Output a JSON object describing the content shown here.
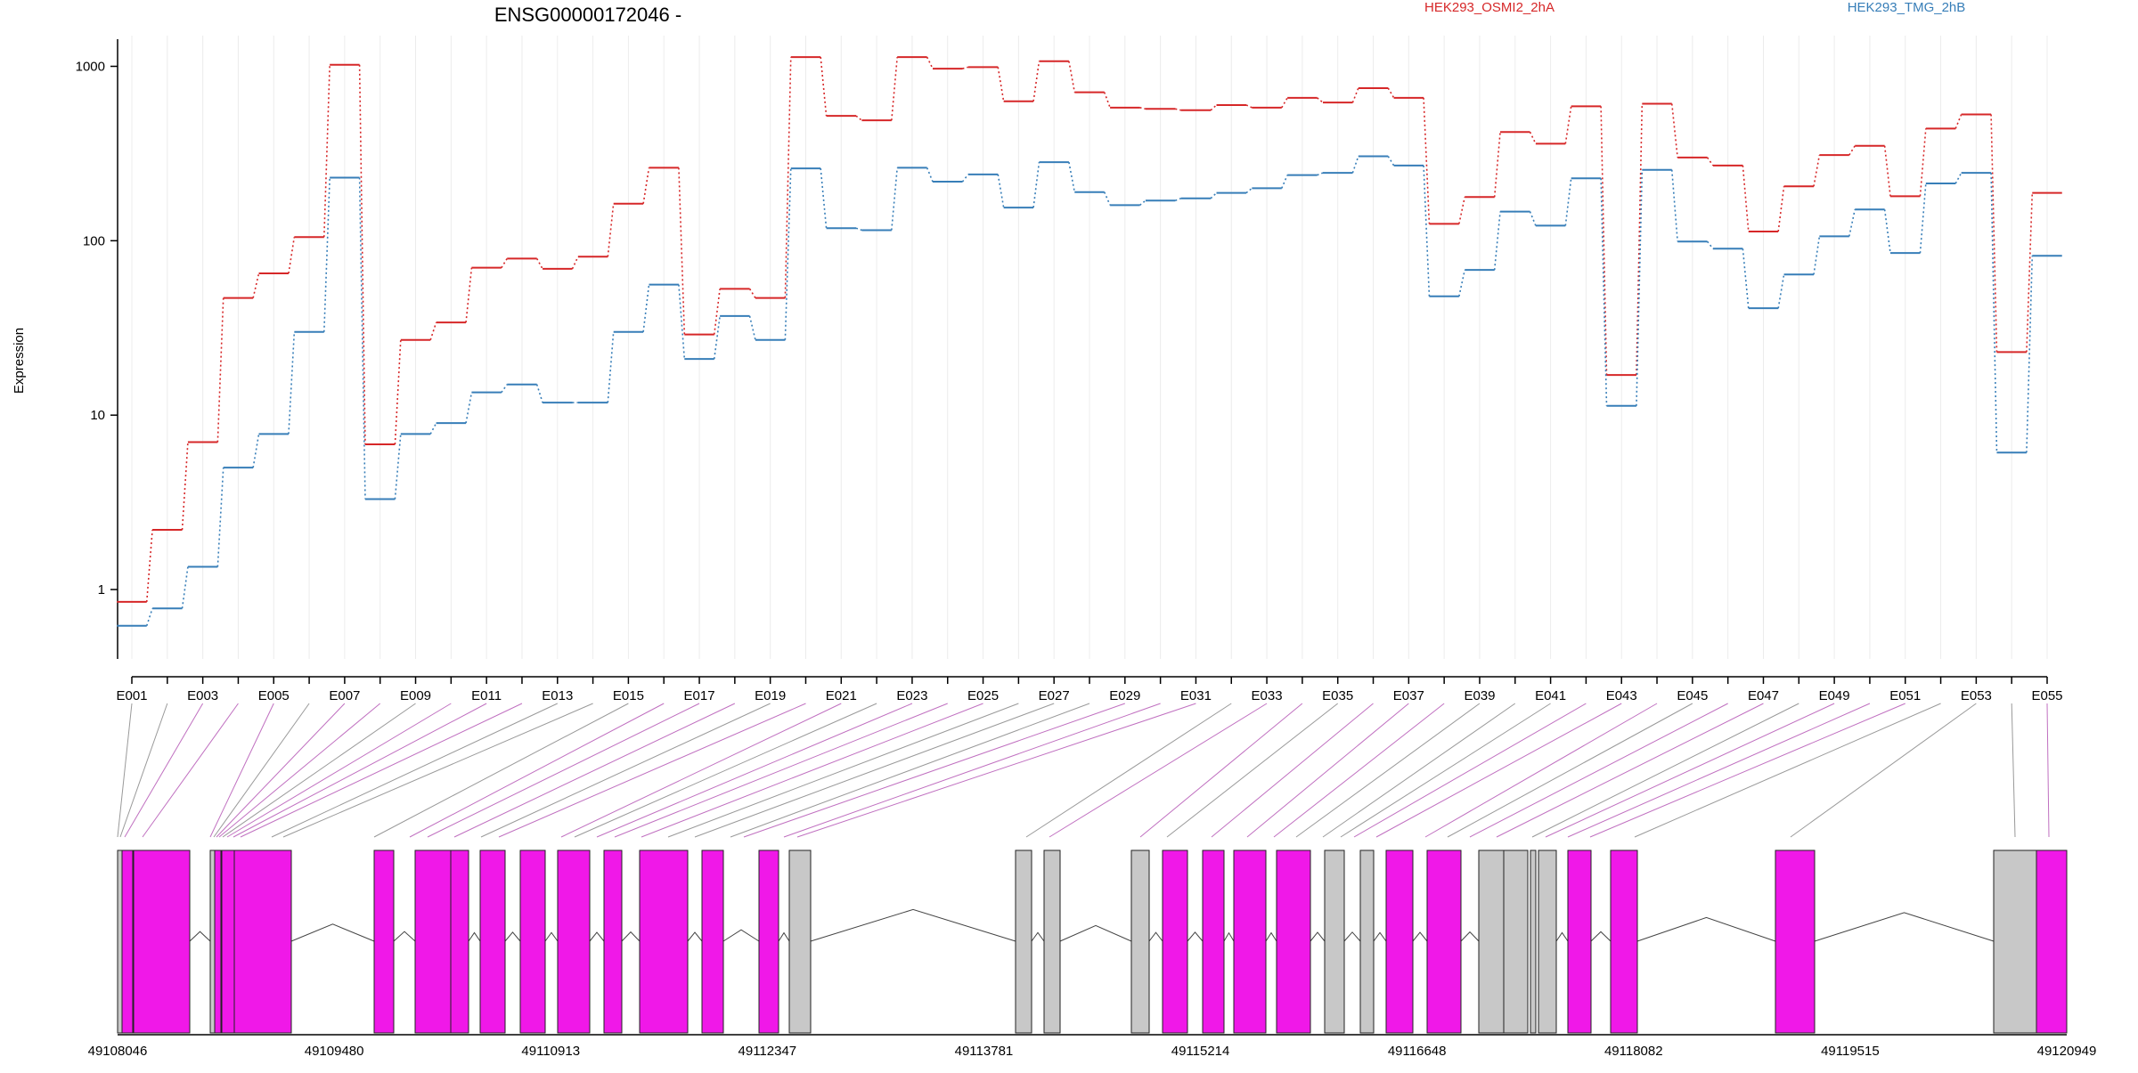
{
  "chart_data": {
    "type": "line",
    "title": "ENSG00000172046 -",
    "ylabel": "Expression",
    "yscale": "log",
    "y_ticks": [
      1,
      10,
      100,
      1000
    ],
    "y_tick_labels": [
      "1",
      "10",
      "100",
      "1000"
    ],
    "ylim": [
      0.4,
      1500
    ],
    "legend_placement": "top",
    "grid": "vertical",
    "colors": {
      "red": "#d62728",
      "blue": "#377eb8",
      "novel": "#f018e8",
      "known": "#c8c8c8"
    },
    "categories": [
      "E001",
      "E002",
      "E003",
      "E004",
      "E005",
      "E006",
      "E007",
      "E008",
      "E009",
      "E010",
      "E011",
      "E012",
      "E013",
      "E014",
      "E015",
      "E016",
      "E017",
      "E018",
      "E019",
      "E020",
      "E021",
      "E022",
      "E023",
      "E024",
      "E025",
      "E026",
      "E027",
      "E028",
      "E029",
      "E030",
      "E031",
      "E032",
      "E033",
      "E034",
      "E035",
      "E036",
      "E037",
      "E038",
      "E039",
      "E040",
      "E041",
      "E042",
      "E043",
      "E044",
      "E045",
      "E046",
      "E047",
      "E048",
      "E049",
      "E050",
      "E051",
      "E052",
      "E053",
      "E054",
      "E055"
    ],
    "x_tick_labels": [
      "E001",
      "E003",
      "E005",
      "E007",
      "E009",
      "E011",
      "E013",
      "E015",
      "E017",
      "E019",
      "E021",
      "E023",
      "E025",
      "E027",
      "E029",
      "E031",
      "E033",
      "E035",
      "E037",
      "E039",
      "E041",
      "E043",
      "E045",
      "E047",
      "E049",
      "E051",
      "E053",
      "E055"
    ],
    "series": [
      {
        "name": "HEK293_OSMI2_2hA",
        "color": "#d62728",
        "values": [
          0.85,
          2.2,
          7,
          47,
          65,
          105,
          1020,
          6.8,
          27,
          34,
          70,
          79,
          69,
          81,
          163,
          262,
          29,
          53,
          47,
          1130,
          520,
          490,
          1130,
          970,
          990,
          630,
          1070,
          710,
          580,
          570,
          560,
          600,
          580,
          660,
          620,
          750,
          660,
          125,
          178,
          420,
          360,
          590,
          17,
          610,
          300,
          270,
          113,
          205,
          310,
          350,
          180,
          440,
          530,
          23,
          188
        ]
      },
      {
        "name": "HEK293_TMG_2hB",
        "color": "#377eb8",
        "values": [
          0.62,
          0.78,
          1.35,
          5,
          7.8,
          30,
          230,
          3.3,
          7.8,
          9,
          13.5,
          15,
          11.8,
          11.8,
          30,
          56,
          21,
          37,
          27,
          260,
          118,
          115,
          262,
          218,
          240,
          155,
          282,
          190,
          160,
          170,
          175,
          188,
          200,
          238,
          245,
          305,
          270,
          48,
          68,
          147,
          122,
          228,
          11.3,
          255,
          99,
          90,
          41,
          64,
          106,
          151,
          85,
          213,
          245,
          6.1,
          82
        ]
      }
    ],
    "gene_model": {
      "coordinate_labels": [
        "49108046",
        "49109480",
        "49110913",
        "49112347",
        "49113781",
        "49115214",
        "49116648",
        "49118082",
        "49119515",
        "49120949"
      ],
      "feature_color_key": {
        "novel": "magenta",
        "known": "gray"
      }
    }
  }
}
